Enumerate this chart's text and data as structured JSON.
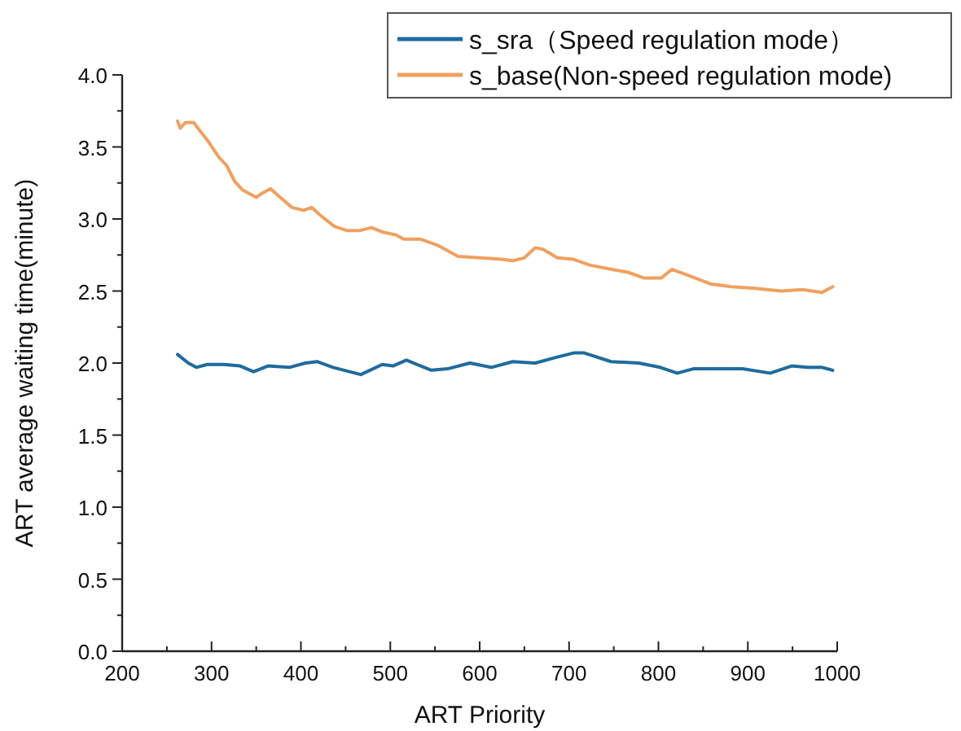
{
  "chart_data": {
    "type": "line",
    "xlabel": "ART Priority",
    "ylabel": "ART average waiting time(minute)",
    "xlim": [
      200,
      1000
    ],
    "xticks": [
      200,
      300,
      400,
      500,
      600,
      700,
      800,
      900,
      1000
    ],
    "ylim": [
      0,
      4
    ],
    "yticks": [
      {
        "value": 0,
        "label": "0.0"
      },
      {
        "value": 0.5,
        "label": "0.5"
      },
      {
        "value": 1,
        "label": "1.0"
      },
      {
        "value": 1.5,
        "label": "1.5"
      },
      {
        "value": 2,
        "label": "2.0"
      },
      {
        "value": 2.5,
        "label": "2.5"
      },
      {
        "value": 3,
        "label": "3.0"
      },
      {
        "value": 3.5,
        "label": "3.5"
      },
      {
        "value": 4,
        "label": "4.0"
      }
    ],
    "legend": "top right",
    "grid": false,
    "series": [
      {
        "name": "s_sra（Speed regulation mode）",
        "color": "#1f6b9e",
        "x": [
          262,
          274,
          283,
          295,
          314,
          332,
          347,
          363,
          387,
          405,
          418,
          436,
          467,
          491,
          503,
          518,
          546,
          564,
          589,
          613,
          637,
          662,
          686,
          705,
          717,
          747,
          778,
          802,
          821,
          839,
          870,
          894,
          925,
          949,
          967,
          983,
          995
        ],
        "values": [
          2.06,
          2.0,
          1.97,
          1.99,
          1.99,
          1.98,
          1.94,
          1.98,
          1.97,
          2.0,
          2.01,
          1.97,
          1.92,
          1.99,
          1.98,
          2.02,
          1.95,
          1.96,
          2.0,
          1.97,
          2.01,
          2.0,
          2.04,
          2.07,
          2.07,
          2.01,
          2.0,
          1.97,
          1.93,
          1.96,
          1.96,
          1.96,
          1.93,
          1.98,
          1.97,
          1.97,
          1.95
        ]
      },
      {
        "name": "s_base(Non-speed regulation mode)",
        "color": "#f0a060",
        "x": [
          262,
          265,
          271,
          280,
          286,
          295,
          308,
          317,
          326,
          335,
          350,
          357,
          366,
          375,
          390,
          403,
          412,
          421,
          437,
          451,
          466,
          479,
          491,
          506,
          515,
          534,
          552,
          576,
          601,
          625,
          637,
          650,
          662,
          671,
          687,
          705,
          723,
          748,
          766,
          784,
          803,
          815,
          833,
          858,
          882,
          906,
          937,
          961,
          983,
          995
        ],
        "values": [
          3.68,
          3.63,
          3.67,
          3.67,
          3.62,
          3.55,
          3.43,
          3.37,
          3.26,
          3.2,
          3.15,
          3.18,
          3.21,
          3.16,
          3.08,
          3.06,
          3.08,
          3.03,
          2.95,
          2.92,
          2.92,
          2.94,
          2.91,
          2.89,
          2.86,
          2.86,
          2.82,
          2.74,
          2.73,
          2.72,
          2.71,
          2.73,
          2.8,
          2.79,
          2.73,
          2.72,
          2.68,
          2.65,
          2.63,
          2.59,
          2.59,
          2.65,
          2.61,
          2.55,
          2.53,
          2.52,
          2.5,
          2.51,
          2.49,
          2.53
        ]
      }
    ]
  }
}
